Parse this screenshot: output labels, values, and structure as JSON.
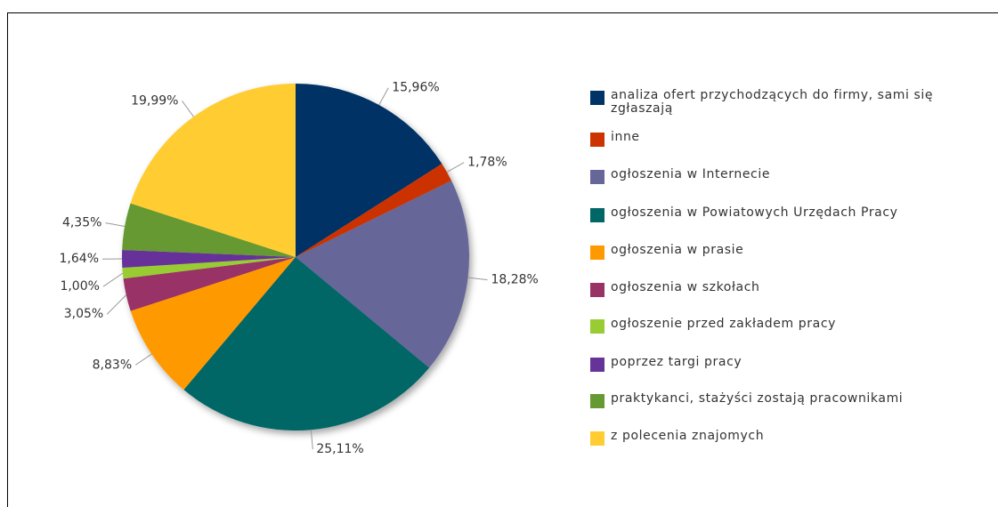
{
  "chart_data": {
    "type": "pie",
    "categories": [
      "analiza ofert przychodzących do firmy, sami się zgłaszają",
      "inne",
      "ogłoszenia w Internecie",
      "ogłoszenia w Powiatowych Urzędach Pracy",
      "ogłoszenia w prasie",
      "ogłoszenia w szkołach",
      "ogłoszenie przed zakładem pracy",
      "poprzez targi pracy",
      "praktykanci, stażyści zostają pracownikami",
      "z polecenia znajomych"
    ],
    "values": [
      15.96,
      1.78,
      18.28,
      25.11,
      8.83,
      3.05,
      1.0,
      1.64,
      4.35,
      19.99
    ],
    "value_labels": [
      "15,96%",
      "1,78%",
      "18,28%",
      "25,11%",
      "8,83%",
      "3,05%",
      "1,00%",
      "1,64%",
      "4,35%",
      "19,99%"
    ],
    "colors": [
      "#003366",
      "#cc3300",
      "#666699",
      "#006666",
      "#ff9900",
      "#993366",
      "#99cc33",
      "#663399",
      "#669933",
      "#ffcc33"
    ],
    "legend": "right"
  }
}
